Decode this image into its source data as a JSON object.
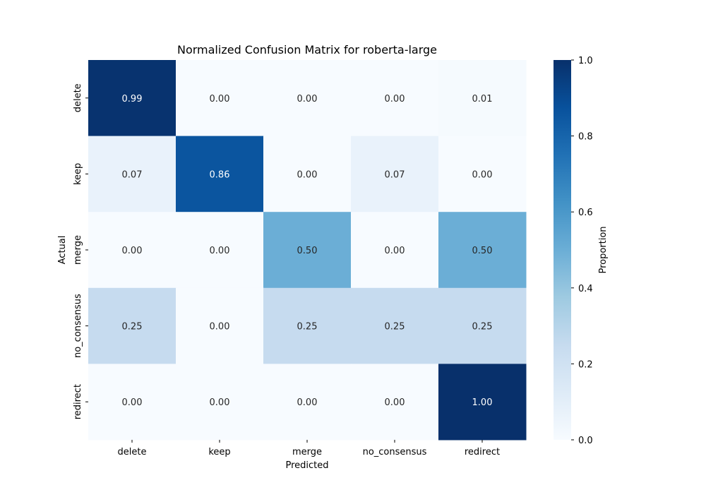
{
  "chart_data": {
    "type": "heatmap",
    "title": "Normalized Confusion Matrix for roberta-large",
    "xlabel": "Predicted",
    "ylabel": "Actual",
    "x_categories": [
      "delete",
      "keep",
      "merge",
      "no_consensus",
      "redirect"
    ],
    "y_categories": [
      "delete",
      "keep",
      "merge",
      "no_consensus",
      "redirect"
    ],
    "values": [
      [
        0.99,
        0.0,
        0.0,
        0.0,
        0.01
      ],
      [
        0.07,
        0.86,
        0.0,
        0.07,
        0.0
      ],
      [
        0.0,
        0.0,
        0.5,
        0.0,
        0.5
      ],
      [
        0.25,
        0.0,
        0.25,
        0.25,
        0.25
      ],
      [
        0.0,
        0.0,
        0.0,
        0.0,
        1.0
      ]
    ],
    "value_format": "0.00",
    "colormap": "Blues",
    "colorbar": {
      "label": "Proportion",
      "range": [
        0.0,
        1.0
      ],
      "ticks": [
        "0.0",
        "0.2",
        "0.4",
        "0.6",
        "0.8",
        "1.0"
      ]
    }
  }
}
